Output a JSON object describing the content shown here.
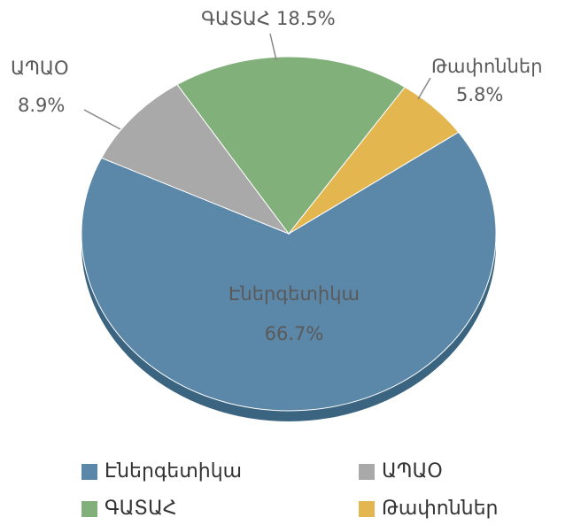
{
  "chart_data": {
    "type": "pie",
    "categories": [
      "Էներգետիկա",
      "ԱՊԱՕ",
      "ԳԱՏԱՀ",
      "Թափոններ"
    ],
    "values": [
      66.7,
      8.9,
      18.5,
      5.8
    ],
    "value_labels": [
      "66.7%",
      "8.9%",
      "18.5%",
      "5.8%"
    ],
    "colors": [
      "#5b87a8",
      "#a9a9a9",
      "#82b07a",
      "#e3b64f"
    ],
    "legend": "bottom"
  }
}
